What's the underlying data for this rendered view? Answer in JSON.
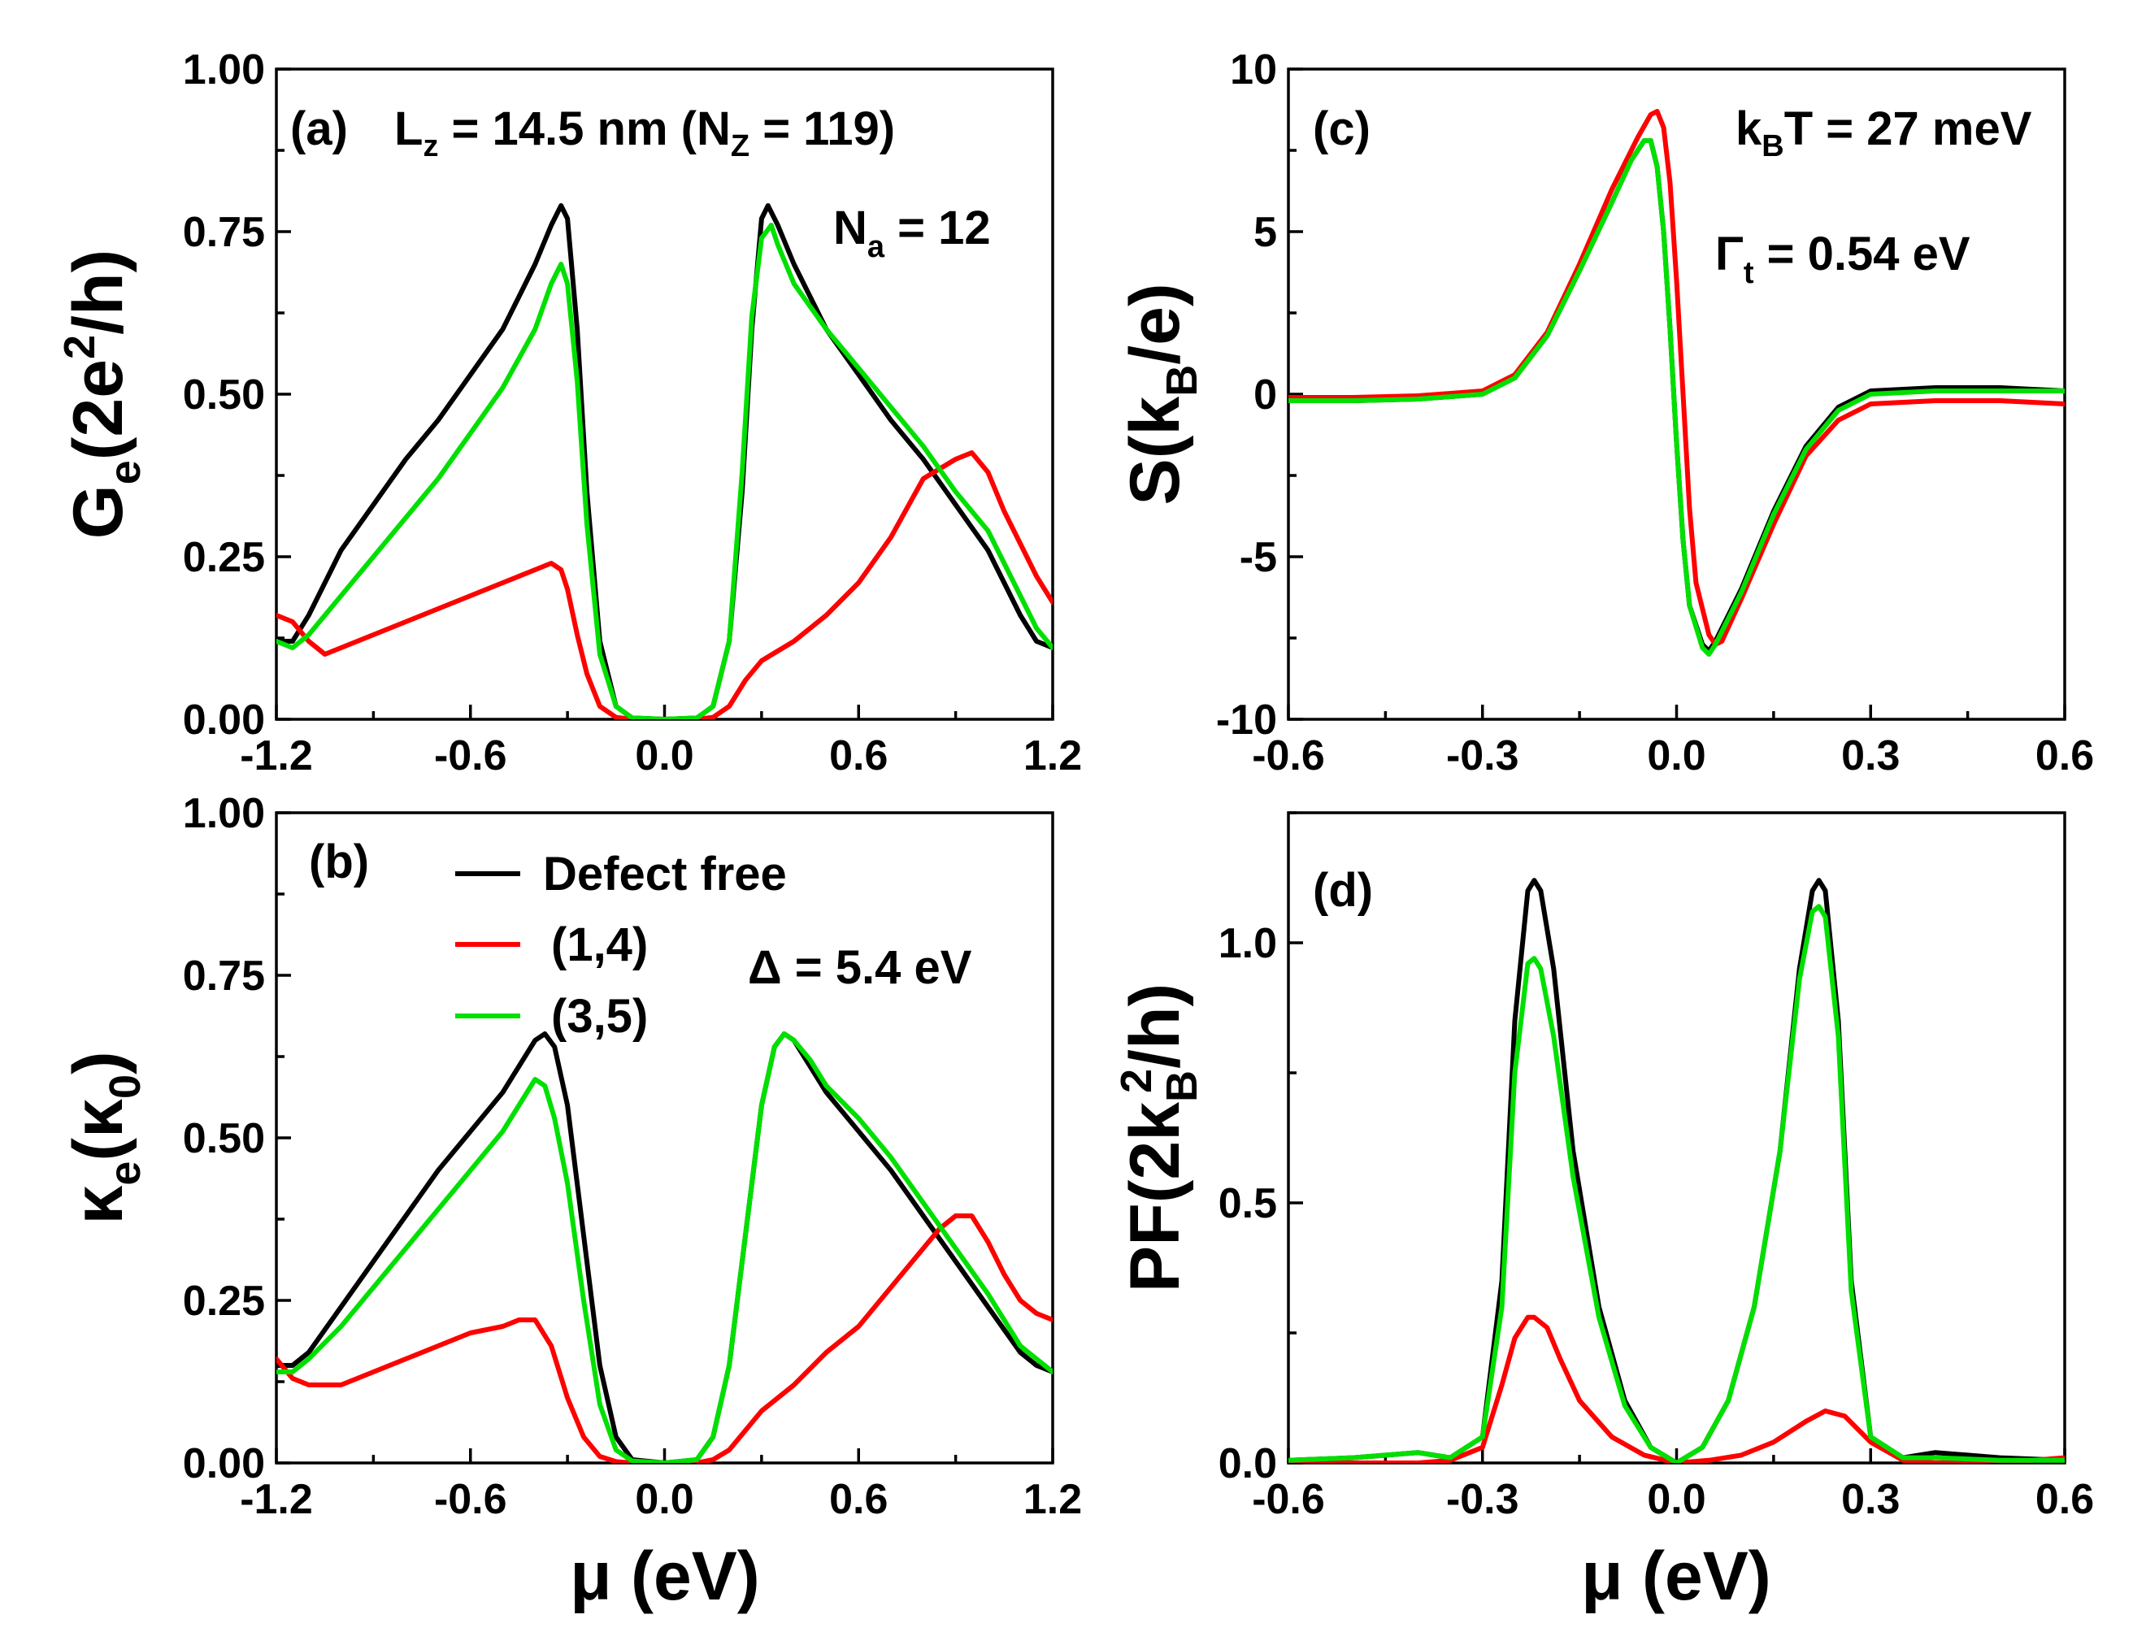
{
  "colors": {
    "defect_free": "#000000",
    "d14": "#ff0000",
    "d35": "#00e000"
  },
  "legend": [
    "Defect free",
    "(1,4)",
    "(3,5)"
  ],
  "chart_data": [
    {
      "id": "a",
      "type": "line",
      "panel_label": "(a)",
      "ylabel": "Ge(2e²/h)",
      "xlim": [
        -1.2,
        1.2
      ],
      "ylim": [
        0,
        1.0
      ],
      "xticks": [
        -1.2,
        -0.6,
        0.0,
        0.6,
        1.2
      ],
      "xtick_labels": [
        "-1.2",
        "-0.6",
        "0.0",
        "0.6",
        "1.2"
      ],
      "yticks": [
        0,
        0.25,
        0.5,
        0.75,
        1.0
      ],
      "ytick_labels": [
        "0.00",
        "0.25",
        "0.50",
        "0.75",
        "1.00"
      ],
      "annotations": [
        "Lz = 14.5 nm (NZ = 119)",
        "Na = 12"
      ],
      "series": [
        {
          "name": "Defect free",
          "color": "#000000",
          "x": [
            -1.2,
            -1.15,
            -1.1,
            -1.0,
            -0.9,
            -0.8,
            -0.7,
            -0.6,
            -0.5,
            -0.4,
            -0.35,
            -0.32,
            -0.3,
            -0.27,
            -0.24,
            -0.2,
            -0.15,
            -0.1,
            0.0,
            0.1,
            0.15,
            0.2,
            0.24,
            0.27,
            0.3,
            0.32,
            0.35,
            0.4,
            0.5,
            0.6,
            0.7,
            0.8,
            0.9,
            1.0,
            1.1,
            1.15,
            1.2
          ],
          "y": [
            0.12,
            0.12,
            0.16,
            0.26,
            0.33,
            0.4,
            0.46,
            0.53,
            0.6,
            0.7,
            0.76,
            0.79,
            0.77,
            0.6,
            0.35,
            0.12,
            0.02,
            0.002,
            0.0,
            0.002,
            0.02,
            0.12,
            0.35,
            0.6,
            0.77,
            0.79,
            0.76,
            0.7,
            0.6,
            0.53,
            0.46,
            0.4,
            0.33,
            0.26,
            0.16,
            0.12,
            0.11
          ]
        },
        {
          "name": "(1,4)",
          "color": "#ff0000",
          "x": [
            -1.2,
            -1.15,
            -1.1,
            -1.05,
            -1.0,
            -0.9,
            -0.8,
            -0.7,
            -0.6,
            -0.5,
            -0.4,
            -0.35,
            -0.32,
            -0.3,
            -0.27,
            -0.24,
            -0.2,
            -0.15,
            -0.1,
            0.0,
            0.1,
            0.15,
            0.2,
            0.25,
            0.3,
            0.4,
            0.5,
            0.6,
            0.7,
            0.8,
            0.9,
            0.95,
            1.0,
            1.05,
            1.1,
            1.15,
            1.2
          ],
          "y": [
            0.16,
            0.15,
            0.12,
            0.1,
            0.11,
            0.13,
            0.15,
            0.17,
            0.19,
            0.21,
            0.23,
            0.24,
            0.23,
            0.2,
            0.13,
            0.07,
            0.02,
            0.003,
            0.0,
            0.0,
            0.0,
            0.003,
            0.02,
            0.06,
            0.09,
            0.12,
            0.16,
            0.21,
            0.28,
            0.37,
            0.4,
            0.41,
            0.38,
            0.32,
            0.27,
            0.22,
            0.18
          ]
        },
        {
          "name": "(3,5)",
          "color": "#00e000",
          "x": [
            -1.2,
            -1.15,
            -1.1,
            -1.0,
            -0.9,
            -0.8,
            -0.7,
            -0.6,
            -0.5,
            -0.4,
            -0.35,
            -0.32,
            -0.3,
            -0.27,
            -0.24,
            -0.2,
            -0.15,
            -0.1,
            0.0,
            0.1,
            0.15,
            0.2,
            0.24,
            0.27,
            0.3,
            0.33,
            0.35,
            0.4,
            0.5,
            0.6,
            0.7,
            0.8,
            0.9,
            1.0,
            1.1,
            1.15,
            1.2
          ],
          "y": [
            0.12,
            0.11,
            0.13,
            0.19,
            0.25,
            0.31,
            0.37,
            0.44,
            0.51,
            0.6,
            0.67,
            0.7,
            0.67,
            0.52,
            0.3,
            0.1,
            0.02,
            0.002,
            0.0,
            0.002,
            0.02,
            0.12,
            0.38,
            0.62,
            0.74,
            0.76,
            0.73,
            0.67,
            0.6,
            0.54,
            0.48,
            0.42,
            0.35,
            0.29,
            0.19,
            0.14,
            0.11
          ]
        }
      ]
    },
    {
      "id": "b",
      "type": "line",
      "panel_label": "(b)",
      "ylabel": "κe(κ0)",
      "xlabel": "μ (eV)",
      "xlim": [
        -1.2,
        1.2
      ],
      "ylim": [
        0,
        1.0
      ],
      "xticks": [
        -1.2,
        -0.6,
        0.0,
        0.6,
        1.2
      ],
      "xtick_labels": [
        "-1.2",
        "-0.6",
        "0.0",
        "0.6",
        "1.2"
      ],
      "yticks": [
        0,
        0.25,
        0.5,
        0.75,
        1.0
      ],
      "ytick_labels": [
        "0.00",
        "0.25",
        "0.50",
        "0.75",
        "1.00"
      ],
      "annotations": [
        "Δ = 5.4 eV"
      ],
      "series": [
        {
          "name": "Defect free",
          "color": "#000000",
          "x": [
            -1.2,
            -1.15,
            -1.1,
            -1.0,
            -0.9,
            -0.8,
            -0.7,
            -0.6,
            -0.5,
            -0.45,
            -0.4,
            -0.37,
            -0.34,
            -0.3,
            -0.25,
            -0.2,
            -0.15,
            -0.1,
            0.0,
            0.1,
            0.15,
            0.2,
            0.25,
            0.3,
            0.34,
            0.37,
            0.4,
            0.45,
            0.5,
            0.6,
            0.7,
            0.8,
            0.9,
            1.0,
            1.1,
            1.15,
            1.2
          ],
          "y": [
            0.15,
            0.15,
            0.17,
            0.24,
            0.31,
            0.38,
            0.45,
            0.51,
            0.57,
            0.61,
            0.65,
            0.66,
            0.64,
            0.55,
            0.35,
            0.15,
            0.04,
            0.005,
            0.0,
            0.005,
            0.04,
            0.15,
            0.35,
            0.55,
            0.64,
            0.66,
            0.65,
            0.61,
            0.57,
            0.51,
            0.45,
            0.38,
            0.31,
            0.24,
            0.17,
            0.15,
            0.14
          ]
        },
        {
          "name": "(1,4)",
          "color": "#ff0000",
          "x": [
            -1.2,
            -1.15,
            -1.1,
            -1.0,
            -0.9,
            -0.8,
            -0.7,
            -0.6,
            -0.5,
            -0.45,
            -0.4,
            -0.35,
            -0.3,
            -0.25,
            -0.2,
            -0.15,
            -0.1,
            0.0,
            0.1,
            0.15,
            0.2,
            0.3,
            0.4,
            0.5,
            0.6,
            0.7,
            0.8,
            0.85,
            0.9,
            0.95,
            1.0,
            1.05,
            1.1,
            1.15,
            1.2
          ],
          "y": [
            0.16,
            0.13,
            0.12,
            0.12,
            0.14,
            0.16,
            0.18,
            0.2,
            0.21,
            0.22,
            0.22,
            0.18,
            0.1,
            0.04,
            0.01,
            0.002,
            0.0,
            0.0,
            0.0,
            0.005,
            0.02,
            0.08,
            0.12,
            0.17,
            0.21,
            0.27,
            0.33,
            0.36,
            0.38,
            0.38,
            0.34,
            0.29,
            0.25,
            0.23,
            0.22
          ]
        },
        {
          "name": "(3,5)",
          "color": "#00e000",
          "x": [
            -1.2,
            -1.15,
            -1.1,
            -1.0,
            -0.9,
            -0.8,
            -0.7,
            -0.6,
            -0.5,
            -0.45,
            -0.4,
            -0.37,
            -0.34,
            -0.3,
            -0.25,
            -0.2,
            -0.15,
            -0.1,
            0.0,
            0.1,
            0.15,
            0.2,
            0.25,
            0.3,
            0.34,
            0.37,
            0.4,
            0.45,
            0.5,
            0.6,
            0.7,
            0.8,
            0.9,
            1.0,
            1.1,
            1.15,
            1.2
          ],
          "y": [
            0.14,
            0.14,
            0.16,
            0.21,
            0.27,
            0.33,
            0.39,
            0.45,
            0.51,
            0.55,
            0.59,
            0.58,
            0.53,
            0.43,
            0.25,
            0.09,
            0.02,
            0.003,
            0.0,
            0.005,
            0.04,
            0.15,
            0.35,
            0.55,
            0.64,
            0.66,
            0.65,
            0.62,
            0.58,
            0.53,
            0.47,
            0.4,
            0.33,
            0.26,
            0.18,
            0.16,
            0.14
          ]
        }
      ]
    },
    {
      "id": "c",
      "type": "line",
      "panel_label": "(c)",
      "ylabel": "S(kB/e)",
      "xlim": [
        -0.6,
        0.6
      ],
      "ylim": [
        -10,
        10
      ],
      "xticks": [
        -0.6,
        -0.3,
        0.0,
        0.3,
        0.6
      ],
      "xtick_labels": [
        "-0.6",
        "-0.3",
        "0.0",
        "0.3",
        "0.6"
      ],
      "yticks": [
        -10,
        -5,
        0,
        5,
        10
      ],
      "ytick_labels": [
        "-10",
        "-5",
        "0",
        "5",
        "10"
      ],
      "annotations": [
        "kBT = 27 meV",
        "Γt = 0.54 eV"
      ],
      "series": [
        {
          "name": "Defect free",
          "color": "#000000",
          "x": [
            -0.6,
            -0.5,
            -0.4,
            -0.3,
            -0.25,
            -0.2,
            -0.15,
            -0.1,
            -0.07,
            -0.05,
            -0.04,
            -0.03,
            -0.02,
            -0.01,
            0.0,
            0.01,
            0.02,
            0.04,
            0.05,
            0.06,
            0.1,
            0.15,
            0.2,
            0.25,
            0.3,
            0.4,
            0.5,
            0.6
          ],
          "y": [
            -0.2,
            -0.2,
            -0.15,
            0.0,
            0.5,
            1.8,
            3.8,
            5.9,
            7.2,
            7.8,
            7.8,
            7.0,
            5.0,
            2.0,
            -1.5,
            -4.5,
            -6.5,
            -7.7,
            -7.9,
            -7.6,
            -6.0,
            -3.6,
            -1.6,
            -0.4,
            0.1,
            0.2,
            0.2,
            0.1
          ]
        },
        {
          "name": "(1,4)",
          "color": "#ff0000",
          "x": [
            -0.6,
            -0.5,
            -0.4,
            -0.3,
            -0.25,
            -0.2,
            -0.15,
            -0.1,
            -0.06,
            -0.04,
            -0.03,
            -0.02,
            -0.01,
            0.0,
            0.01,
            0.02,
            0.03,
            0.05,
            0.06,
            0.07,
            0.1,
            0.15,
            0.2,
            0.25,
            0.3,
            0.4,
            0.5,
            0.6
          ],
          "y": [
            -0.1,
            -0.1,
            -0.05,
            0.1,
            0.6,
            1.9,
            4.0,
            6.3,
            7.9,
            8.6,
            8.7,
            8.2,
            6.5,
            3.5,
            0.0,
            -3.5,
            -5.8,
            -7.4,
            -7.7,
            -7.6,
            -6.3,
            -4.0,
            -1.9,
            -0.8,
            -0.3,
            -0.2,
            -0.2,
            -0.3
          ]
        },
        {
          "name": "(3,5)",
          "color": "#00e000",
          "x": [
            -0.6,
            -0.5,
            -0.4,
            -0.3,
            -0.25,
            -0.2,
            -0.15,
            -0.1,
            -0.07,
            -0.05,
            -0.04,
            -0.03,
            -0.02,
            -0.01,
            0.0,
            0.01,
            0.02,
            0.04,
            0.05,
            0.06,
            0.1,
            0.15,
            0.2,
            0.25,
            0.3,
            0.4,
            0.5,
            0.6
          ],
          "y": [
            -0.2,
            -0.2,
            -0.15,
            0.0,
            0.5,
            1.8,
            3.8,
            5.9,
            7.2,
            7.8,
            7.8,
            7.0,
            5.0,
            2.0,
            -1.5,
            -4.5,
            -6.5,
            -7.8,
            -8.0,
            -7.7,
            -6.1,
            -3.7,
            -1.7,
            -0.5,
            0.0,
            0.1,
            0.1,
            0.1
          ]
        }
      ]
    },
    {
      "id": "d",
      "type": "line",
      "panel_label": "(d)",
      "ylabel": "PF(2kB²/h)",
      "xlabel": "μ (eV)",
      "xlim": [
        -0.6,
        0.6
      ],
      "ylim": [
        0,
        1.25
      ],
      "xticks": [
        -0.6,
        -0.3,
        0.0,
        0.3,
        0.6
      ],
      "xtick_labels": [
        "-0.6",
        "-0.3",
        "0.0",
        "0.3",
        "0.6"
      ],
      "yticks": [
        0,
        0.5,
        1.0
      ],
      "ytick_labels": [
        "0.0",
        "0.5",
        "1.0"
      ],
      "annotations": [],
      "series": [
        {
          "name": "Defect free",
          "color": "#000000",
          "x": [
            -0.6,
            -0.5,
            -0.4,
            -0.35,
            -0.3,
            -0.27,
            -0.25,
            -0.23,
            -0.22,
            -0.21,
            -0.19,
            -0.16,
            -0.12,
            -0.08,
            -0.04,
            0.0,
            0.04,
            0.08,
            0.12,
            0.16,
            0.19,
            0.21,
            0.22,
            0.23,
            0.25,
            0.27,
            0.3,
            0.35,
            0.4,
            0.5,
            0.6
          ],
          "y": [
            0.005,
            0.01,
            0.02,
            0.01,
            0.05,
            0.35,
            0.85,
            1.1,
            1.12,
            1.1,
            0.95,
            0.6,
            0.3,
            0.12,
            0.03,
            0.0,
            0.03,
            0.12,
            0.3,
            0.6,
            0.95,
            1.1,
            1.12,
            1.1,
            0.85,
            0.35,
            0.05,
            0.01,
            0.02,
            0.01,
            0.005
          ]
        },
        {
          "name": "(1,4)",
          "color": "#ff0000",
          "x": [
            -0.6,
            -0.5,
            -0.4,
            -0.35,
            -0.3,
            -0.27,
            -0.25,
            -0.23,
            -0.22,
            -0.2,
            -0.18,
            -0.15,
            -0.1,
            -0.05,
            0.0,
            0.05,
            0.1,
            0.15,
            0.2,
            0.23,
            0.26,
            0.3,
            0.35,
            0.4,
            0.5,
            0.6
          ],
          "y": [
            0.0,
            0.0,
            0.0,
            0.005,
            0.03,
            0.15,
            0.24,
            0.28,
            0.28,
            0.26,
            0.2,
            0.12,
            0.05,
            0.015,
            0.0,
            0.005,
            0.015,
            0.04,
            0.08,
            0.1,
            0.09,
            0.04,
            0.005,
            0.0,
            0.0,
            0.01
          ]
        },
        {
          "name": "(3,5)",
          "color": "#00e000",
          "x": [
            -0.6,
            -0.5,
            -0.4,
            -0.35,
            -0.3,
            -0.27,
            -0.25,
            -0.23,
            -0.22,
            -0.21,
            -0.19,
            -0.16,
            -0.12,
            -0.08,
            -0.04,
            0.0,
            0.04,
            0.08,
            0.12,
            0.16,
            0.19,
            0.21,
            0.22,
            0.23,
            0.25,
            0.27,
            0.3,
            0.35,
            0.4,
            0.5,
            0.6
          ],
          "y": [
            0.005,
            0.01,
            0.02,
            0.01,
            0.05,
            0.3,
            0.75,
            0.96,
            0.97,
            0.95,
            0.82,
            0.55,
            0.28,
            0.11,
            0.03,
            0.0,
            0.03,
            0.12,
            0.3,
            0.6,
            0.93,
            1.06,
            1.07,
            1.05,
            0.82,
            0.33,
            0.05,
            0.01,
            0.01,
            0.005,
            0.005
          ]
        }
      ]
    }
  ]
}
